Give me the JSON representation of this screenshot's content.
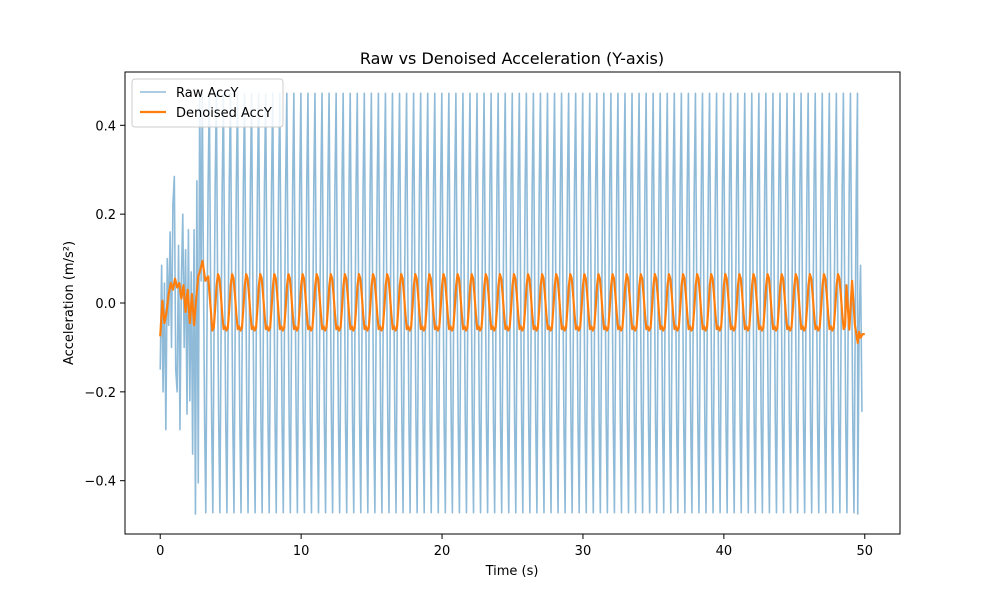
{
  "chart_data": {
    "type": "line",
    "title": "Raw vs Denoised Acceleration (Y-axis)",
    "xlabel": "Time (s)",
    "ylabel": "Acceleration (m/s²)",
    "xlim": [
      -2.5,
      52.5
    ],
    "ylim": [
      -0.52,
      0.52
    ],
    "x_ticks": [
      0,
      10,
      20,
      30,
      40,
      50
    ],
    "x_tick_labels": [
      "0",
      "10",
      "20",
      "30",
      "40",
      "50"
    ],
    "y_ticks": [
      -0.4,
      -0.2,
      0.0,
      0.2,
      0.4
    ],
    "y_tick_labels": [
      "−0.4",
      "−0.2",
      "0.0",
      "0.2",
      "0.4"
    ],
    "grid": false,
    "legend_position": "top-left",
    "colors": {
      "raw": "#1f77b4",
      "denoised": "#ff7f0e"
    },
    "series": [
      {
        "name": "Raw AccY",
        "x_start": 0,
        "x_end": 50,
        "cycle_period": 0.5,
        "level_cycle": [
          0.472,
          0.072,
          -0.268,
          -0.472,
          -0.072,
          0.268
        ],
        "startup_points": [
          [
            0.0,
            -0.15
          ],
          [
            0.1,
            0.085
          ],
          [
            0.2,
            -0.2
          ],
          [
            0.3,
            0.045
          ],
          [
            0.4,
            -0.285
          ],
          [
            0.5,
            0.1
          ],
          [
            0.6,
            -0.05
          ],
          [
            0.7,
            0.16
          ],
          [
            0.8,
            -0.1
          ],
          [
            0.9,
            0.22
          ],
          [
            1.0,
            0.285
          ],
          [
            1.1,
            -0.15
          ],
          [
            1.2,
            -0.2
          ],
          [
            1.3,
            0.13
          ],
          [
            1.4,
            -0.285
          ],
          [
            1.5,
            0.05
          ],
          [
            1.6,
            0.2
          ],
          [
            1.7,
            -0.1
          ],
          [
            1.8,
            0.12
          ],
          [
            1.9,
            -0.25
          ],
          [
            2.0,
            0.165
          ],
          [
            2.1,
            -0.22
          ],
          [
            2.2,
            0.07
          ],
          [
            2.3,
            -0.34
          ],
          [
            2.4,
            0.165
          ],
          [
            2.5,
            -0.475
          ],
          [
            2.6,
            0.275
          ],
          [
            2.7,
            -0.405
          ],
          [
            2.8,
            0.472
          ],
          [
            2.9,
            0.05
          ]
        ],
        "end_points": [
          [
            49.5,
            -0.475
          ],
          [
            49.6,
            -0.05
          ],
          [
            49.7,
            0.085
          ],
          [
            49.8,
            -0.245
          ]
        ]
      },
      {
        "name": "Denoised AccY",
        "x_start": 0,
        "x_end": 50,
        "cycle_period": 1.0,
        "wave_high": 0.065,
        "wave_low": -0.062,
        "startup_points": [
          [
            0.0,
            -0.075
          ],
          [
            0.15,
            0.005
          ],
          [
            0.3,
            -0.045
          ],
          [
            0.45,
            -0.02
          ],
          [
            0.6,
            0.02
          ],
          [
            0.75,
            0.045
          ],
          [
            0.9,
            0.03
          ],
          [
            1.05,
            0.055
          ],
          [
            1.2,
            0.035
          ],
          [
            1.35,
            0.045
          ],
          [
            1.5,
            0.01
          ],
          [
            1.65,
            0.04
          ],
          [
            1.8,
            -0.02
          ],
          [
            1.95,
            0.03
          ],
          [
            2.1,
            -0.045
          ],
          [
            2.25,
            0.02
          ],
          [
            2.4,
            -0.05
          ],
          [
            2.55,
            0.01
          ],
          [
            2.7,
            0.06
          ],
          [
            2.85,
            0.075
          ],
          [
            3.0,
            0.095
          ],
          [
            3.2,
            0.05
          ],
          [
            3.4,
            0.06
          ],
          [
            3.6,
            -0.02
          ]
        ],
        "end_points": [
          [
            48.7,
            0.04
          ],
          [
            48.9,
            -0.06
          ],
          [
            49.1,
            0.05
          ],
          [
            49.3,
            -0.05
          ],
          [
            49.5,
            -0.09
          ],
          [
            49.6,
            -0.065
          ],
          [
            49.7,
            -0.078
          ],
          [
            49.85,
            -0.07
          ],
          [
            50.0,
            -0.07
          ]
        ]
      }
    ]
  }
}
